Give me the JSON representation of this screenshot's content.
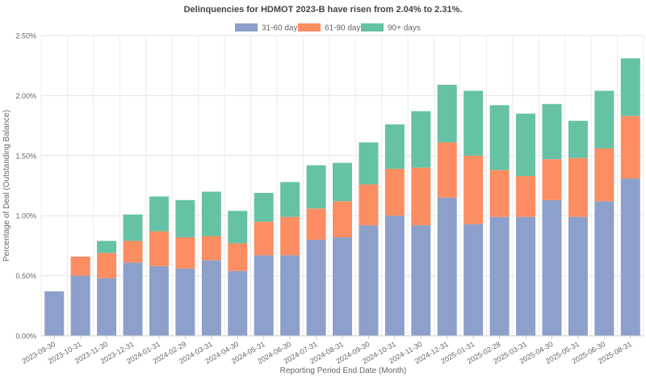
{
  "chart_data": {
    "type": "bar",
    "stacked": true,
    "title": "Delinquencies for HDMOT 2023-B have risen from 2.04% to 2.31%.",
    "xlabel": "Reporting Period End Date (Month)",
    "ylabel": "Percentage of Deal (Outstanding Balance)",
    "ylim": [
      0,
      2.5
    ],
    "yticks": [
      "0.00%",
      "0.50%",
      "1.00%",
      "1.50%",
      "2.00%",
      "2.50%"
    ],
    "ytick_values": [
      0,
      0.5,
      1.0,
      1.5,
      2.0,
      2.5
    ],
    "legend_position": "top-center",
    "grid": true,
    "categories": [
      "2023-09-30",
      "2023-10-31",
      "2023-11-30",
      "2023-12-31",
      "2024-01-31",
      "2024-02-29",
      "2024-03-31",
      "2024-04-30",
      "2024-05-31",
      "2024-06-30",
      "2024-07-31",
      "2024-08-31",
      "2024-09-30",
      "2024-10-31",
      "2024-11-30",
      "2024-12-31",
      "2025-01-31",
      "2025-02-28",
      "2025-03-31",
      "2025-04-30",
      "2025-05-31",
      "2025-06-30",
      "2025-08-31"
    ],
    "series": [
      {
        "name": "31-60 days",
        "color": "#8da0cb",
        "values": [
          0.37,
          0.5,
          0.48,
          0.61,
          0.58,
          0.56,
          0.63,
          0.54,
          0.67,
          0.67,
          0.8,
          0.82,
          0.92,
          1.0,
          0.92,
          1.15,
          0.93,
          0.99,
          0.99,
          1.13,
          0.99,
          1.12,
          1.31
        ]
      },
      {
        "name": "61-90 days",
        "color": "#fc8d62",
        "values": [
          0.0,
          0.16,
          0.21,
          0.18,
          0.29,
          0.26,
          0.2,
          0.23,
          0.28,
          0.32,
          0.26,
          0.3,
          0.34,
          0.39,
          0.48,
          0.46,
          0.57,
          0.39,
          0.34,
          0.34,
          0.49,
          0.44,
          0.52
        ]
      },
      {
        "name": "90+ days",
        "color": "#66c2a5",
        "values": [
          0.0,
          0.0,
          0.1,
          0.22,
          0.29,
          0.31,
          0.37,
          0.27,
          0.24,
          0.29,
          0.36,
          0.32,
          0.35,
          0.37,
          0.47,
          0.48,
          0.54,
          0.54,
          0.52,
          0.46,
          0.31,
          0.48,
          0.48
        ]
      }
    ]
  }
}
